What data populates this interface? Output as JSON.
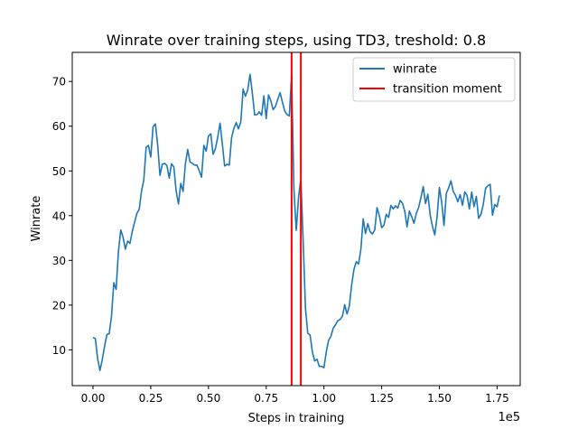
{
  "chart_data": {
    "type": "line",
    "title": "Winrate over training steps, using TD3, treshold: 0.8",
    "xlabel": "Steps in training",
    "ylabel": "Winrate",
    "x_offset_label": "1e5",
    "xlim": [
      -0.09,
      1.85
    ],
    "ylim": [
      2.0,
      76.5
    ],
    "x_ticks": [
      0.0,
      0.25,
      0.5,
      0.75,
      1.0,
      1.25,
      1.5,
      1.75
    ],
    "x_tick_labels": [
      "0.00",
      "0.25",
      "0.50",
      "0.75",
      "1.00",
      "1.25",
      "1.50",
      "1.75"
    ],
    "y_ticks": [
      10,
      20,
      30,
      40,
      50,
      60,
      70
    ],
    "y_tick_labels": [
      "10",
      "20",
      "30",
      "40",
      "50",
      "60",
      "70"
    ],
    "grid": false,
    "legend_position": "upper right",
    "series": [
      {
        "name": "winrate",
        "color": "#1f77b4",
        "x": [
          0.0,
          0.01,
          0.02,
          0.03,
          0.04,
          0.05,
          0.06,
          0.07,
          0.08,
          0.09,
          0.1,
          0.11,
          0.12,
          0.13,
          0.14,
          0.15,
          0.16,
          0.17,
          0.18,
          0.19,
          0.2,
          0.21,
          0.22,
          0.23,
          0.24,
          0.25,
          0.26,
          0.27,
          0.28,
          0.29,
          0.3,
          0.31,
          0.32,
          0.33,
          0.34,
          0.35,
          0.36,
          0.37,
          0.38,
          0.39,
          0.4,
          0.41,
          0.42,
          0.43,
          0.44,
          0.45,
          0.46,
          0.47,
          0.48,
          0.49,
          0.5,
          0.51,
          0.52,
          0.53,
          0.54,
          0.55,
          0.56,
          0.57,
          0.58,
          0.59,
          0.6,
          0.61,
          0.62,
          0.63,
          0.64,
          0.65,
          0.66,
          0.67,
          0.68,
          0.69,
          0.7,
          0.71,
          0.72,
          0.73,
          0.74,
          0.75,
          0.76,
          0.77,
          0.78,
          0.79,
          0.8,
          0.81,
          0.82,
          0.83,
          0.84,
          0.85,
          0.86,
          0.87,
          0.88,
          0.89,
          0.9,
          0.91,
          0.92,
          0.93,
          0.94,
          0.95,
          0.96,
          0.97,
          0.98,
          0.99,
          1.0,
          1.01,
          1.02,
          1.03,
          1.04,
          1.05,
          1.06,
          1.07,
          1.08,
          1.09,
          1.1,
          1.11,
          1.12,
          1.13,
          1.14,
          1.15,
          1.16,
          1.17,
          1.18,
          1.19,
          1.2,
          1.21,
          1.22,
          1.23,
          1.24,
          1.25,
          1.26,
          1.27,
          1.28,
          1.29,
          1.3,
          1.31,
          1.32,
          1.33,
          1.34,
          1.35,
          1.36,
          1.37,
          1.38,
          1.39,
          1.4,
          1.41,
          1.42,
          1.43,
          1.44,
          1.45,
          1.46,
          1.47,
          1.48,
          1.49,
          1.5,
          1.51,
          1.52,
          1.53,
          1.54,
          1.55,
          1.56,
          1.57,
          1.58,
          1.59,
          1.6,
          1.61,
          1.62,
          1.63,
          1.64,
          1.65,
          1.66,
          1.67,
          1.68,
          1.69,
          1.7,
          1.71,
          1.72,
          1.73,
          1.74,
          1.75,
          1.76
        ],
        "values": [
          12.8,
          12.5,
          8.0,
          5.4,
          7.8,
          10.8,
          13.4,
          13.6,
          17.5,
          25.0,
          23.5,
          32.0,
          36.8,
          35.2,
          32.5,
          34.3,
          33.8,
          36.5,
          38.5,
          40.5,
          41.4,
          45.5,
          48.0,
          55.3,
          55.7,
          53.1,
          59.9,
          60.5,
          55.8,
          49.0,
          51.5,
          51.7,
          51.2,
          48.4,
          51.6,
          50.9,
          45.5,
          42.6,
          47.2,
          45.4,
          51.6,
          54.8,
          52.0,
          51.7,
          51.3,
          51.3,
          50.0,
          48.6,
          55.7,
          54.4,
          57.8,
          58.3,
          53.7,
          55.0,
          57.5,
          60.7,
          56.0,
          51.1,
          51.5,
          51.3,
          57.4,
          59.5,
          60.8,
          59.4,
          61.0,
          68.3,
          66.7,
          68.1,
          71.6,
          67.4,
          62.5,
          62.6,
          63.2,
          62.4,
          66.8,
          61.7,
          67.0,
          65.7,
          63.7,
          64.4,
          66.0,
          67.5,
          65.4,
          63.4,
          62.6,
          62.3,
          71.6,
          46.0,
          36.7,
          44.1,
          48.2,
          34.5,
          19.3,
          13.7,
          13.3,
          9.5,
          7.5,
          7.9,
          6.3,
          6.3,
          6.0,
          9.5,
          12.1,
          13.0,
          14.8,
          15.6,
          16.5,
          16.8,
          17.5,
          20.1,
          18.0,
          19.8,
          24.5,
          28.0,
          29.7,
          29.2,
          32.5,
          39.3,
          36.0,
          38.2,
          36.4,
          35.9,
          36.8,
          41.8,
          40.0,
          37.3,
          37.9,
          40.3,
          39.6,
          42.3,
          41.5,
          42.2,
          41.7,
          43.4,
          42.8,
          41.0,
          37.5,
          41.0,
          39.8,
          38.3,
          40.5,
          41.8,
          44.0,
          46.5,
          42.7,
          44.8,
          40.2,
          37.6,
          35.7,
          39.7,
          46.3,
          43.0,
          37.8,
          45.0,
          46.2,
          47.8,
          45.4,
          44.5,
          43.1,
          44.7,
          42.3,
          45.3,
          44.5,
          41.5,
          45.3,
          42.0,
          44.3,
          39.4,
          40.3,
          42.5,
          46.1,
          46.7,
          47.0,
          40.1,
          42.5,
          42.0,
          44.5
        ]
      }
    ],
    "vlines": [
      {
        "name": "transition moment",
        "color": "#ff0000",
        "x": 0.86
      },
      {
        "name": "transition moment",
        "color": "#ff0000",
        "x": 0.9
      }
    ],
    "legend": [
      {
        "label": "winrate",
        "color": "#1f77b4"
      },
      {
        "label": "transition moment",
        "color": "#ff0000"
      }
    ]
  }
}
